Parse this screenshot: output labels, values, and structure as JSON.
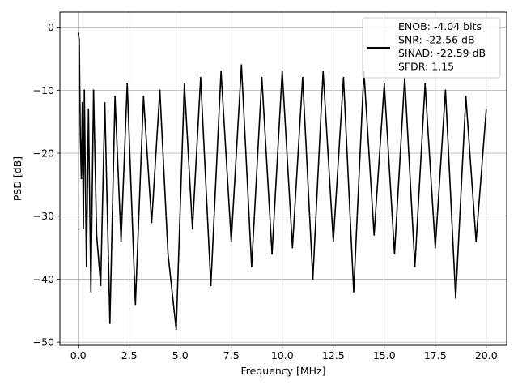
{
  "chart_data": {
    "type": "line",
    "title": "",
    "xlabel": "Frequency [MHz]",
    "ylabel": "PSD [dB]",
    "xlim": [
      -0.9,
      21.0
    ],
    "ylim": [
      -50.5,
      2.4
    ],
    "xticks": [
      0.0,
      2.5,
      5.0,
      7.5,
      10.0,
      12.5,
      15.0,
      17.5,
      20.0
    ],
    "xtick_labels": [
      "0.0",
      "2.5",
      "5.0",
      "7.5",
      "10.0",
      "12.5",
      "15.0",
      "17.5",
      "20.0"
    ],
    "yticks": [
      0,
      -10,
      -20,
      -30,
      -40,
      -50
    ],
    "ytick_labels": [
      "0",
      "−10",
      "−20",
      "−30",
      "−40",
      "−50"
    ],
    "grid": true,
    "legend": {
      "placement": "upper right",
      "lines": [
        "ENOB: -4.04 bits",
        "SNR: -22.56 dB",
        "SINAD: -22.59 dB",
        "SFDR: 1.15"
      ]
    },
    "series": [
      {
        "color": "#000000",
        "x": [
          0.0,
          0.05,
          0.1,
          0.15,
          0.2,
          0.25,
          0.3,
          0.4,
          0.5,
          0.62,
          0.75,
          0.9,
          1.1,
          1.3,
          1.55,
          1.8,
          2.1,
          2.4,
          2.8,
          3.2,
          3.6,
          4.0,
          4.4,
          4.8,
          5.2,
          5.6,
          6.0,
          6.5,
          7.0,
          7.5,
          8.0,
          8.5,
          9.0,
          9.5,
          10.0,
          10.5,
          11.0,
          11.5,
          12.0,
          12.5,
          13.0,
          13.5,
          14.0,
          14.5,
          15.0,
          15.5,
          16.0,
          16.5,
          17.0,
          17.5,
          18.0,
          18.5,
          19.0,
          19.5,
          20.0
        ],
        "y": [
          -1,
          -2,
          -17,
          -24,
          -12,
          -32,
          -10,
          -38,
          -13,
          -42,
          -10,
          -33,
          -41,
          -12,
          -47,
          -11,
          -34,
          -9,
          -44,
          -11,
          -31,
          -10,
          -36,
          -48,
          -9,
          -32,
          -8,
          -41,
          -7,
          -34,
          -6,
          -38,
          -8,
          -36,
          -7,
          -35,
          -8,
          -40,
          -7,
          -34,
          -8,
          -42,
          -7,
          -33,
          -9,
          -36,
          -8,
          -38,
          -9,
          -35,
          -10,
          -43,
          -11,
          -34,
          -13
        ]
      }
    ]
  }
}
